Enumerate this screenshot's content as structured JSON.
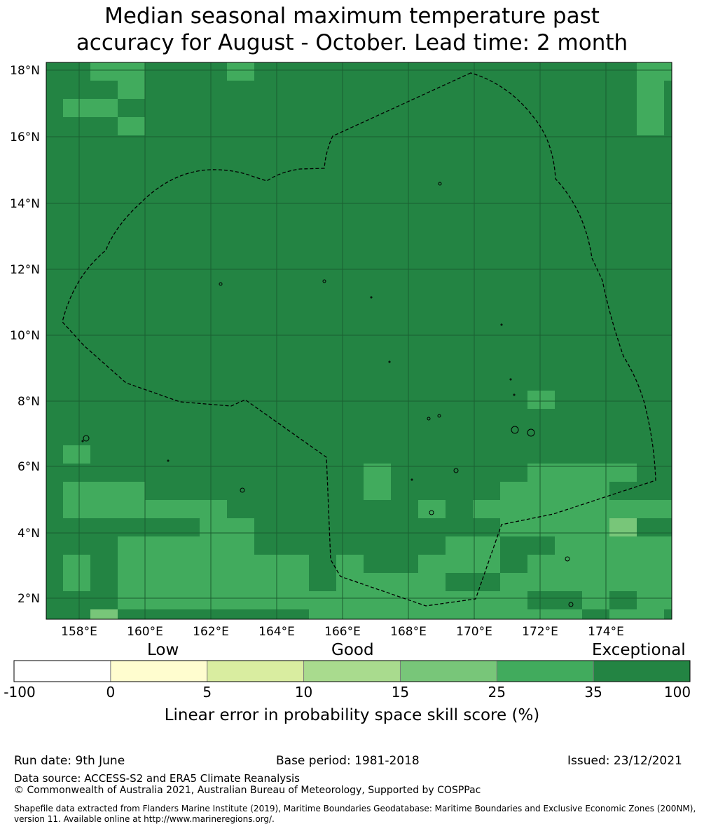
{
  "title": {
    "line1": "Median seasonal maximum temperature past",
    "line2": "accuracy for August - October. Lead time: 2 month"
  },
  "map": {
    "lon_ticks": [
      "158°E",
      "160°E",
      "162°E",
      "164°E",
      "166°E",
      "168°E",
      "170°E",
      "172°E",
      "174°E"
    ],
    "lat_ticks": [
      "18°N",
      "16°N",
      "14°N",
      "12°N",
      "10°N",
      "8°N",
      "6°N",
      "4°N",
      "2°N"
    ],
    "extent": {
      "lon_min": 157.0,
      "lon_max": 176.1,
      "lat_min": 1.4,
      "lat_max": 18.3
    },
    "grid": true,
    "boundary_style": "dashed black line (Exclusive Economic Zone)"
  },
  "colorbar": {
    "category_labels": [
      "Low",
      "Good",
      "Exceptional"
    ],
    "ticks": [
      "-100",
      "0",
      "5",
      "10",
      "15",
      "25",
      "35",
      "100"
    ],
    "colors": [
      "#ffffff",
      "#fffdcf",
      "#d9eda0",
      "#a9db8e",
      "#78c679",
      "#41ab5d",
      "#238443"
    ],
    "caption": "Linear error in probability space skill score (%)"
  },
  "footer": {
    "run_date": "Run date: 9th June",
    "base_period": "Base period: 1981-2018",
    "issued": "Issued: 23/12/2021",
    "data_source": "Data source: ACCESS-S2 and ERA5 Climate Reanalysis",
    "copyright": "© Commonwealth of Australia 2021, Australian Bureau of Meteorology, Supported by COSPPac",
    "shapefile": "Shapefile data extracted from Flanders Marine Institute (2019), Maritime Boundaries Geodatabase: Maritime Boundaries and Exclusive Economic Zones (200NM), version 11. Available online at http://www.marineregions.org/."
  }
}
